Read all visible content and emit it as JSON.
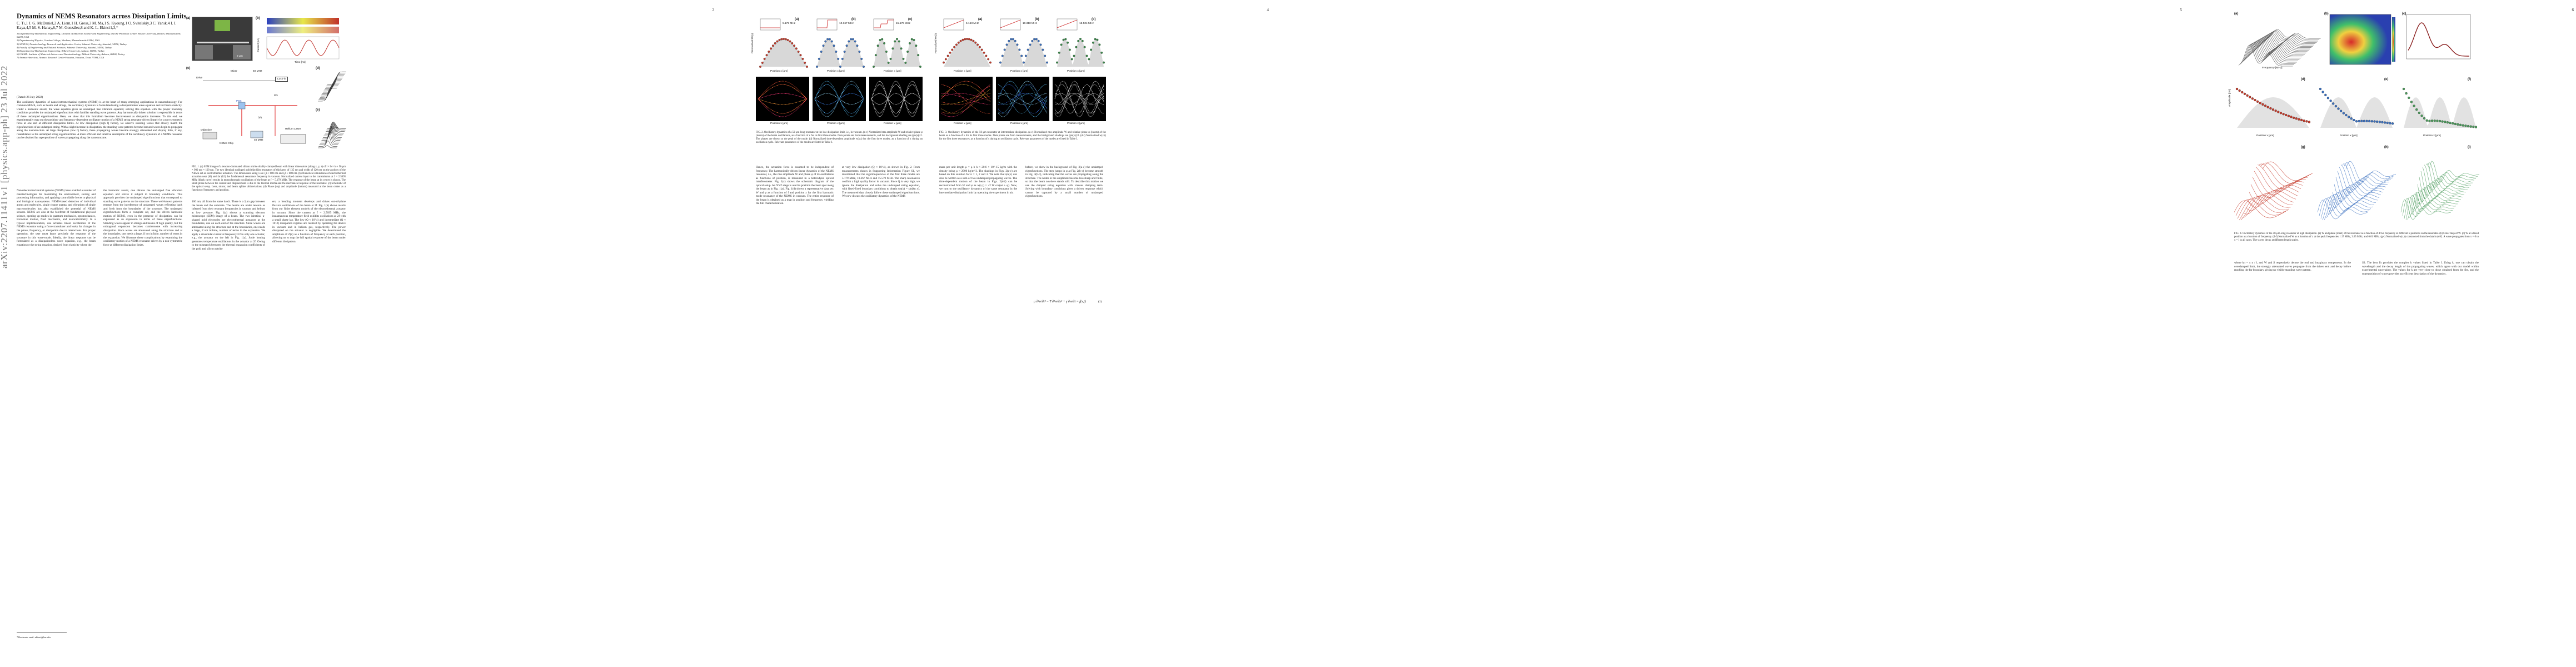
{
  "arxiv_stamp": "arXiv:2207.11411v1  [physics.app-ph]  23 Jul 2022",
  "page_numbers": [
    "2",
    "3",
    "4",
    "5",
    "6",
    "7"
  ],
  "paper": {
    "title": "Dynamics of NEMS Resonators across Dissipation Limits",
    "authors": "C. Tı,1 J. G. McDaniel,2 A. Liem,1 H. Gress,3 M. Ma,1 S. Kyoung,1 O. Svitelskiy,3 C. Yanık,4 I. I. Kaya,4,5 M. S. Hanay,6,7 M. González,8 and K. L. Ekinci1,3,*",
    "affiliations": [
      "1) Department of Mechanical Engineering, Division of Materials Science and Engineering, and the Photonics Center, Boston University, Boston, Massachusetts 02215, USA",
      "2) Department of Physics, Gordon College, Wenham, Massachusetts 01984, USA",
      "3) SUNUM, Nanotechnology Research and Application Center, Sabanci University, Istanbul, 34956, Turkey",
      "4) Faculty of Engineering and Natural Sciences, Sabanci University, Istanbul, 34956, Turkey",
      "5) Department of Mechanical Engineering, Bilkent University, Ankara, 06800, Turkey",
      "6) UNAM - Institute of Materials Science and Nanotechnology, Bilkent University, Ankara, 06800, Turkey",
      "7) Aramco Americas, Aramco Research Center-Houston, Houston, Texas 77084, USA"
    ],
    "dated": "(Dated: 26 July 2022)",
    "abstract": "The oscillatory dynamics of nanoelectromechanical systems (NEMS) is at the heart of many emerging applications in nanotechnology. For common NEMS, such as beams and strings, the oscillatory dynamics is formulated using a dissipationless wave equation derived from elasticity. Under a harmonic ansatz, the wave equation gives an undamped free vibration equation; solving this equation with the proper boundary conditions provides the undamped eigenfunctions with familiar standing wave patterns. Any harmonically driven solution is expressible in terms of these undamped eigenfunctions. Here, we show that this formalism becomes inconvenient as dissipation increases. To this end, we experimentally map out the position- and frequency-dependent oscillatory motion of a NEMS string resonator driven linearly by a non-symmetric force at one end at different dissipation limits. At low dissipation (high Q factor), we observe standing waves that closely match the eigenfunctions of an undamped string. With a slight increase in dissipation, the standing wave patterns become lost and waves begin to propagate along the nanostructure. At large dissipation (low Q factor), these propagating waves become strongly attenuated and display little, if any, resemblance to the undamped string eigenfunctions. A more efficient and intuitive description of the oscillatory dynamics of a NEMS resonator can be obtained by superposition of waves propagating along the nanostructure.",
    "footnote": "*Electronic mail: ekinci@bu.edu"
  },
  "page1_body": {
    "left": "Nanoelectromechanical systems (NEMS) have enabled a number of nanotechnologies for monitoring the environment, storing and processing information, and applying controllable forces to physical and biological nanosystems. NEMS-based detection of individual atoms and molecules, single charge quanta, and vibrations of single macromolecules has also established the potential of NEMS sensors. NEMS are also at the forefront of fundamental physical science, opening up studies in quantum mechanics, optomechanics, Brownian motion, fluid mechanics, and nanocalorimetry. In a typical implementation, one actuates linear oscillations of the NEMS resonator using a force transducer and looks for changes in the phase, frequency, or dissipation due to interactions. For proper operation, the user must know precisely the response of the structure in this wave-mode. Ideally, the linear response can be formulated as a dissipationless wave equation, e.g., the beam equation or the string equation, derived from elasticity where the",
    "right": "the harmonic ansatz, one obtains the undamped free vibration equation and solves it subject to boundary conditions. This approach provides the undamped eigenfunctions that correspond to standing wave patterns on the structure. These well-known patterns emerge from the interference of undamped waves reflecting back and forth from the boundaries of the structure. The undamped eigenfunctions form a complete set, and the driven harmonic motion of NEMS, even in the presence of dissipation, can be expressed as an expansion in terms of these eigenfunctions. Standing waves appear in strings and beams of high quality, but the orthogonal expansion becomes cumbersome with increasing dissipation. Since waves are attenuated along the structure and at the boundaries, one needs a large, if not infinite, number of terms in the expansion. We illustrate these complications by examining the oscillatory motion of a NEMS resonator driven by a non-symmetric force at different dissipation limits."
  },
  "page2": {
    "fig_labels": [
      "(a)",
      "(b)",
      "(c)",
      "(d)",
      "(e)"
    ],
    "fig_text": {
      "scale": "2 μm",
      "b_xlabel": "Time [ns]",
      "b_ylabel": "Current [nA]",
      "freq_mhz": "f [MHz]",
      "sweep": "5.179 MHz",
      "drive": "Drive",
      "mixer": "Mixer",
      "rf": "40 MHz",
      "lockin": "Lock-in",
      "pbs": "PBS",
      "objective": "Objective",
      "nems": "NEMS Chip",
      "helium": "Helium Laser",
      "aom": "AOM",
      "aom_freq": "40 MHz",
      "lambda": "λ/4",
      "pd": "PD"
    },
    "caption": "FIG. 1. (a) SEM image of a tension-dominated silicon nitride doubly-clamped beam with linear dimensions (along x, y, z) of l × b × h ≈ 50 μm × 900 nm × 100 nm. The two identical scalloped gold thin-film resonators of thickness of 135 nm and width of 120 nm on the anchors of the NEMS act as electrothermal actuators. The dimensions along x are ξ1 ≈ 600 nm and ξ2 ≈ 600 nm. (b) Numerical simulations of electrothermal actuation near (bl) and far (b2) the fundamental resonance frequency in vacuum. Normalized current input to the transmission at f = 2.5095 MHz (black curve) results in monochromatic oscillations of the beam at f = 5.179 MHz. The response of the beam at its center is shown. The small phase between the current and displacement is due to the thermal inertia and the mechanical response of the resonator. (c) Schematic of the optical setup. Lens, mirror, and beam splitter abbreviations. (d) Phase (top) and amplitude (bottom) measured at the beam center as a function of frequency and position.",
    "body_left": "100 nm, all from the same batch. There is a 2μm gap between the beam and the substrate. The beams are under tension as inferred from their resonant frequencies in vacuum and helium at low pressure. Fig. 1(a) shows a scanning electron microscope (SEM) image of a beam. The two identical u-shaped gold electrodes are electrothermal actuators at the boundaries, one on each end of the structure. Since waves are attenuated along the structure and at the boundaries, one needs a large, if not infinite, number of terms in the expansion. We apply a sinusoidal current at frequency f/2 to only one actuator, e.g., the actuator on the left in Fig. 1(a). Joule heating generates temperature oscillations in the actuator at 2f. Owing to the mismatch between the thermal expansion coefficients of the gold and silicon nitride",
    "body_right": "ers, a bending moment develops and drives out-of-plane flexural oscillations of the beam at 2f. Fig. 1(b) shows results from our finite element models of the electrothermal actuator in vacuum. Since the current at f = 2.5095 MHz, the instantaneous temperature field exhibits oscillations at 2f with a small phase lag. The low (Q ≈ 10^4) and intermediate (Q ≈ 10^2) dissipation regimes are realized by operating the device in vacuum and in helium gas, respectively. The power dissipated on the actuator is negligible. We determined the amplitude of Z(x) as a function of frequency at each position, allowing us to map the full spatial response of the beam under different dissipation."
  },
  "page3": {
    "fig_labels": [
      "(a)",
      "(b)",
      "(c)",
      "(d)",
      "(e)",
      "(f)"
    ],
    "freqs": [
      "5.179 MHz",
      "10.367 MHz",
      "15.579 MHz"
    ],
    "xlabel": "Position x [μm]",
    "ylabel_amp": "Normalized W(x)",
    "ylabel_phase": "Phase [π]",
    "caption": "FIG. 2. Oscillatory dynamics of a 50-μm-long resonator at the low dissipation limit, i.e., in vacuum. (a-c) Normalized rms amplitude W and relative phase φ (insets) of the beam oscillations, as a function of x for its first three modes. Data points are from measurements, and the background shading are |ψn(x)|^2. The phases are shown at the peak of the mode. (d) Normalized time-dependent amplitude w(x,t) for the first three modes, as a function of x during an oscillation cycle. Relevant parameters of the modes are listed in Table I.",
    "body_left": "Hence, the actuation force is assumed to be independent of frequency. The harmonically-driven linear dynamics of the NEMS resonator, i.e., the rms amplitude W and phase φ of its oscillations as functions of position, is measured in a heterodyne optical interferometer. Fig. 1(c) shows the schematic diagram of the optical setup. An XYZ stage is used to position the laser spot along the beam as in Fig. 1(a). Fig. 1(d) shows a representative data set: W and φ as a function of f and position x for the first harmonic mode resonance of the NEMS in vacuum. The entire response of the beam is obtained as a map in position and frequency, yielding the full characterization.",
    "body_right": "at very low dissipation (Q ≈ 10^4), as shown in Fig. 2. From measurements shown in Supporting Information Figure S1, we determined that the eigenfrequencies of the first three modes are 5.179 MHz, 10.367 MHz and 15.579 MHz. The sharp resonances confirm a high quality factor in vacuum. Since Q is very high, we ignore the dissipation and solve the undamped string equation, with fixed-fixed boundary conditions to obtain ψn(x) = sin(kn x). The measured data closely follow these undamped eigenfunctions. We now discuss the oscillatory dynamics of the NEMS"
  },
  "page4": {
    "fig_labels": [
      "(a)",
      "(b)",
      "(c)",
      "(d)",
      "(e)",
      "(f)"
    ],
    "freqs": [
      "5.163 MHz",
      "10.310 MHz",
      "15.504 MHz"
    ],
    "xlabel": "Position x [μm]",
    "ylabel_amp": "Normalized W(x)",
    "ylabel_phase": "Phase [π]",
    "caption": "FIG. 3. Oscillatory dynamics of the 50-μm resonator at intermediate dissipation. (a-c) Normalized rms amplitude W and relative phase φ (insets) of the beam as a function of x for its first three modes. Data points are from measurements, and the background shadings are |ψn(x)|^2. (d-f) Normalized w(x,t) for the first three resonances, as a function of x during an oscillation cycle. Relevant parameters of the modes are listed in Table I.",
    "body_left": "mass per unit length μ = ρ b h ≈ 20.6 × 10^-15 kg/m with the density being ρ ≈ 2900 kg/m^3. The shadings in Figs. 2(a-c) are based on this solution for n = 1, 2 and 3. We note that ψn(x) can also be written as a sum of two undamped propagating waves. The time-dependent motion of the beam in Figs. 2(d-f) can be reconstructed from W and φ as w(x,t) = √2 W cos(ωt + φ). Now, we turn to the oscillatory dynamics of the same resonator in the intermediate dissipation limit by operating the experiment in air.",
    "body_right": "before, we show in the background of Fig. 3(a-c) the undamped eigenfunctions. The step jumps in φ at Fig. 2(b-c) become smooth in Fig. 3(b-c), indicating that the waves are propagating along the structure. The nodes in the amplitude become less sharp and finite, so that the beam nowhere stands still. To describe this motion we use the damped string equation with viscous damping term. Solving with boundary conditions gives a driven response which cannot be captured by a small number of undamped eigenfunctions."
  },
  "page5": {
    "fig_labels": [
      "(a)",
      "(b)",
      "(c)",
      "(d)",
      "(e)",
      "(f)",
      "(g)",
      "(h)",
      "(i)"
    ],
    "xlabel_f": "Frequency [MHz]",
    "xlabel_x": "Position x [μm]",
    "ylabel": "Amplitude [nm]",
    "caption": "FIG. 4. Oscillatory dynamics of the 50-μm-long resonator at high dissipation. (a) W and phase (inset) of the resonator as a function of drive frequency at different x positions on the resonator. (b) Color map of W. (c) W at a fixed position as a function of frequency. (d-f) Normalized W as a function of x at the peak frequencies 1.17 MHz, 3.65 MHz, and 6.01 MHz. (g-i) Normalized w(x,t) constructed from the data in (d-f). A wave propagates from x = 0 to x = l in all cases. The waves decay at different length scales.",
    "body_left": "where kn = π n / l, and W and S respectively denote the real and imaginary components. In the overdamped limit, the strongly attenuated waves propagate from the driven end and decay before reaching the far boundary, giving no visible standing wave pattern.",
    "body_right": "S3. The best fit provides the complex k values listed in Table I. Using k, one can obtain the wavelength and the decay length of the propagating waves, which agree with our model within experimental uncertainty. The values for k are very close to those obtained from the fits, and the superposition of waves provides an efficient description of the dynamics."
  }
}
